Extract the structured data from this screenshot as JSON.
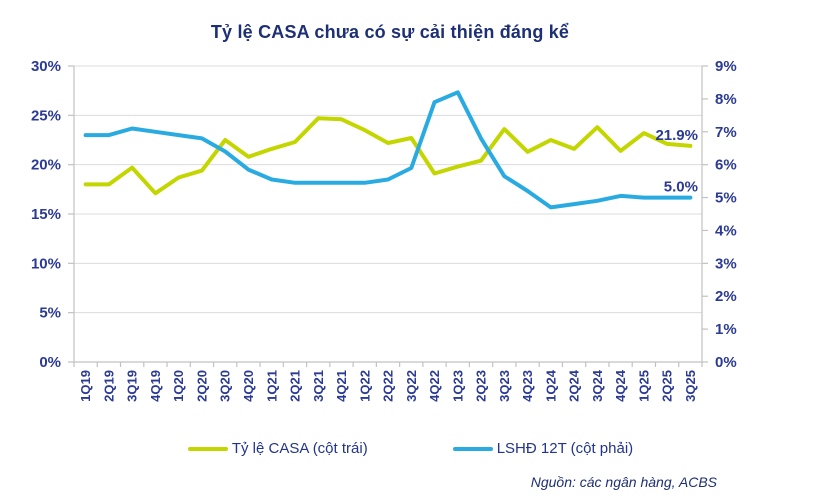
{
  "title": "Tỷ lệ CASA chưa có sự cải thiện đáng kể",
  "source_note": "Nguồn: các ngân hàng, ACBS",
  "colors": {
    "casa_line": "#c4d600",
    "lshd_line": "#29abe2",
    "title_navy": "#1d2f75",
    "tick_navy": "#2b3a94",
    "gridline": "#dcdcdc",
    "axis": "#c2c2c2"
  },
  "chart_data": {
    "type": "line",
    "title": "Tỷ lệ CASA chưa có sự cải thiện đáng kể",
    "categories": [
      "1Q19",
      "2Q19",
      "3Q19",
      "4Q19",
      "1Q20",
      "2Q20",
      "3Q20",
      "4Q20",
      "1Q21",
      "2Q21",
      "3Q21",
      "4Q21",
      "1Q22",
      "2Q22",
      "3Q22",
      "4Q22",
      "1Q23",
      "2Q23",
      "3Q23",
      "4Q23",
      "1Q24",
      "2Q24",
      "3Q24",
      "4Q24",
      "1Q25",
      "2Q25",
      "3Q25"
    ],
    "grid": true,
    "legend_position": "bottom",
    "left_axis": {
      "min": 0,
      "max": 30,
      "step": 5,
      "suffix": "%"
    },
    "right_axis": {
      "min": 0,
      "max": 9,
      "step": 1,
      "suffix": "%"
    },
    "series": [
      {
        "name": "Tỷ lệ CASA (cột trái)",
        "slug": "casa",
        "axis": "left",
        "color": "#c4d600",
        "end_label": "21.9%",
        "values": [
          18.0,
          18.0,
          19.7,
          17.1,
          18.7,
          19.4,
          22.5,
          20.8,
          21.6,
          22.3,
          24.7,
          24.6,
          23.5,
          22.2,
          22.7,
          19.1,
          19.8,
          20.4,
          23.6,
          21.3,
          22.5,
          21.6,
          23.8,
          21.4,
          23.2,
          22.1,
          21.9
        ]
      },
      {
        "name": "LSHĐ 12T (cột phải)",
        "slug": "lshd",
        "axis": "right",
        "color": "#29abe2",
        "end_label": "5.0%",
        "values": [
          6.9,
          6.9,
          7.1,
          7.0,
          6.9,
          6.8,
          6.4,
          5.85,
          5.55,
          5.45,
          5.45,
          5.45,
          5.45,
          5.55,
          5.9,
          7.9,
          8.2,
          6.8,
          5.65,
          5.2,
          4.7,
          4.8,
          4.9,
          5.05,
          5.0,
          5.0,
          5.0
        ]
      }
    ]
  },
  "legend": {
    "items": [
      {
        "label": "Tỷ lệ CASA (cột trái)"
      },
      {
        "label": "LSHĐ 12T (cột phải)"
      }
    ]
  }
}
